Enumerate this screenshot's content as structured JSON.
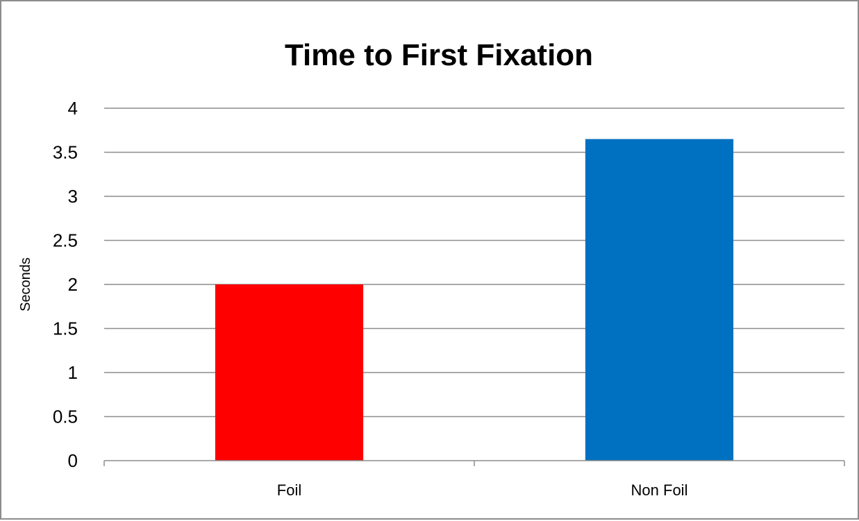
{
  "chart_data": {
    "type": "bar",
    "title": "Time to First Fixation",
    "xlabel": "",
    "ylabel": "Seconds",
    "categories": [
      "Foil",
      "Non Foil"
    ],
    "values": [
      2.0,
      3.65
    ],
    "bar_colors": [
      "#ff0000",
      "#0070c0"
    ],
    "ylim": [
      0,
      4
    ],
    "yticks": [
      "0",
      "0.5",
      "1",
      "1.5",
      "2",
      "2.5",
      "3",
      "3.5",
      "4"
    ],
    "grid": true,
    "legend": "none"
  },
  "colors": {
    "gridline": "#8c8c8c",
    "frame": "#8c8c8c"
  }
}
